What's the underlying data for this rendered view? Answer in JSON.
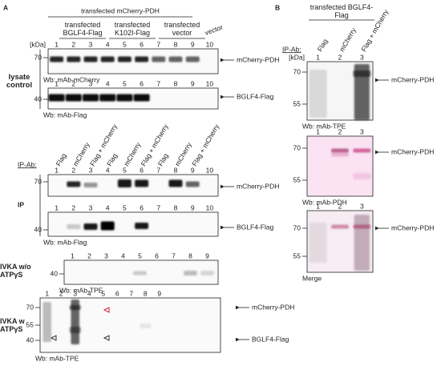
{
  "panel_a": {
    "label": "A",
    "header": "transfected mCherry-PDH",
    "groups": [
      "transfected BGLF4-Flag",
      "transfected K102I-Flag",
      "transfected vector",
      "vector"
    ],
    "lysate": {
      "label": "lysate control",
      "blots": [
        {
          "unit": "[kDa]",
          "lanes": [
            1,
            2,
            3,
            4,
            5,
            6,
            7,
            8,
            9,
            10
          ],
          "markers": [
            70
          ],
          "bands": [
            "mCherry-PDH"
          ],
          "wb": "Wb: mAb-mCherry"
        },
        {
          "lanes": [
            1,
            2,
            3,
            4,
            5,
            6,
            7,
            8,
            9,
            10
          ],
          "markers": [
            40
          ],
          "bands": [
            "BGLF4-Flag"
          ],
          "wb": "Wb: mAb-Flag"
        }
      ]
    },
    "ip_ab": {
      "label": "IP-Ab:",
      "columns": [
        "Flag",
        "mCherry",
        "Flag + mCherry",
        "Flag",
        "mCherry",
        "Flag + mCherry",
        "Flag",
        "mCherry",
        "Flag + mCherry"
      ]
    },
    "ip": {
      "label": "IP",
      "blots": [
        {
          "lanes": [
            1,
            2,
            3,
            4,
            5,
            6,
            7,
            8,
            9,
            10
          ],
          "markers": [
            70
          ],
          "bands": [
            "mCherry-PDH"
          ]
        },
        {
          "lanes": [
            1,
            2,
            3,
            4,
            5,
            6,
            7,
            8,
            9,
            10
          ],
          "markers": [
            40
          ],
          "bands": [
            "BGLF4-Flag"
          ],
          "wb": "Wb: mAb-Flag"
        }
      ]
    },
    "ivka_without": {
      "label": "IVKA w/o ATPγS",
      "blot": {
        "lanes": [
          1,
          2,
          3,
          4,
          5,
          6,
          7,
          8,
          9
        ],
        "markers": [
          40
        ],
        "wb": "Wb: mAb-TPE"
      }
    },
    "ivka_with": {
      "label": "IVKA w ATPγS",
      "blot": {
        "lanes": [
          1,
          2,
          3,
          4,
          5,
          6,
          7,
          8,
          9
        ],
        "markers": [
          70,
          55,
          40
        ],
        "bands": [
          "mCherry-PDH",
          "BGLF4-Flag"
        ],
        "wb": "Wb: mAb-TPE"
      }
    }
  },
  "panel_b": {
    "label": "B",
    "header": "transfected BGLF4-Flag",
    "ip_ab": {
      "label": "IP-Ab:",
      "columns": [
        "Flag",
        "mCherry",
        "Flag + mCherry"
      ]
    },
    "blots": [
      {
        "unit": "[kDa]",
        "lanes": [
          1,
          2,
          3
        ],
        "markers": [
          70,
          55
        ],
        "bands": [
          "mCherry-PDH"
        ],
        "wb": "Wb: mAb-TPE"
      },
      {
        "lanes": [
          1,
          2,
          3
        ],
        "markers": [
          70,
          55
        ],
        "bands": [
          "mCherry-PDH"
        ],
        "wb": "Wb: mAb-PDH"
      },
      {
        "lanes": [
          1,
          2,
          3
        ],
        "markers": [
          70,
          55
        ],
        "bands": [
          "mCherry-PDH"
        ],
        "wb": "Merge"
      }
    ]
  }
}
